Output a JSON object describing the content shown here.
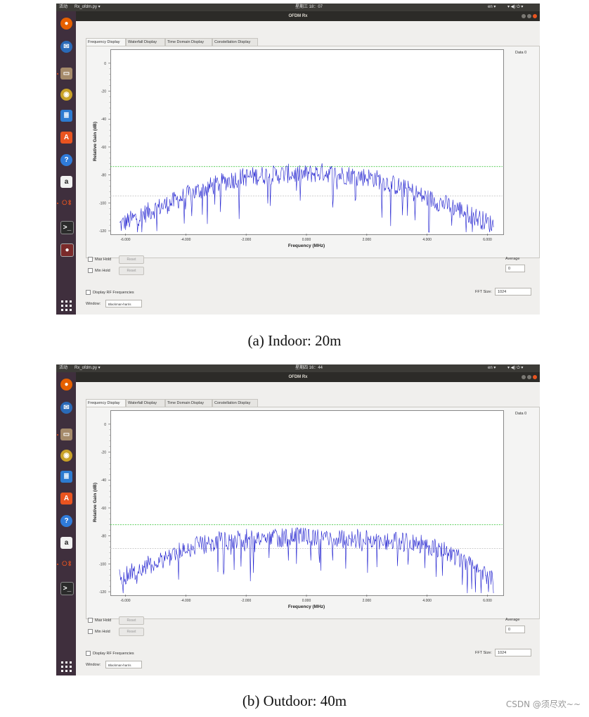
{
  "panels": [
    {
      "caption": "(a) Indoor: 20m",
      "topbar": {
        "activities": "活动",
        "app_menu": "Rx_ofdm.py ▾",
        "clock": "星期三 18：07",
        "lang": "en ▾",
        "right_icons": "▾ ◀) ⏻ ▾"
      },
      "window_title": "OFDM Rx",
      "tabs": [
        "Frequency Display",
        "Waterfall Display",
        "Time Domain Display",
        "Constellation Display"
      ],
      "legend": "Data 0",
      "y_axis_label": "Relative Gain (dB)",
      "x_axis_label": "Frequency (MHz)",
      "controls": {
        "max_hold": "Max Hold",
        "min_hold": "Min Hold",
        "reset": "Reset",
        "average_label": "Average",
        "average_value": "0",
        "display_rf": "Display RF Frequencies",
        "fft_label": "FFT Size:",
        "fft_value": "1024",
        "window_label": "Window:",
        "window_value": "Blackman-harris"
      },
      "chart_data": {
        "type": "line",
        "x_ticks": [
          "-6.000",
          "-4.000",
          "-2.000",
          "0.000",
          "2.000",
          "4.000",
          "6.000"
        ],
        "y_ticks": [
          "0",
          "-20",
          "-40",
          "-60",
          "-80",
          "-100",
          "-120"
        ],
        "xlim": [
          -6.5,
          6.5
        ],
        "ylim": [
          -122,
          10
        ],
        "ylabel": "Relative Gain (dB)",
        "xlabel": "Frequency (MHz)",
        "series": [
          {
            "name": "Data 0",
            "color": "#1f1fcf",
            "x": [
              -6.2,
              -5.6,
              -5.0,
              -4.6,
              -4.2,
              -3.8,
              -3.4,
              -3.0,
              -2.6,
              -2.2,
              -1.8,
              -1.4,
              -1.0,
              -0.6,
              -0.2,
              0.2,
              0.6,
              1.0,
              1.4,
              1.8,
              2.2,
              2.6,
              3.0,
              3.4,
              3.8,
              4.2,
              4.6,
              5.0,
              5.4,
              5.8,
              6.2
            ],
            "y": [
              -116,
              -110,
              -104,
              -101,
              -97,
              -93,
              -90,
              -87,
              -84,
              -82,
              -81,
              -80,
              -80,
              -79,
              -80,
              -79,
              -78,
              -80,
              -80,
              -81,
              -82,
              -85,
              -88,
              -91,
              -95,
              -98,
              -101,
              -104,
              -108,
              -112,
              -116
            ]
          }
        ],
        "reference_lines": {
          "upper": -74,
          "lower": -95,
          "colors": [
            "#2bbf2b",
            "#bfbfbf"
          ]
        },
        "grid": false
      }
    },
    {
      "caption": "(b) Outdoor: 40m",
      "topbar": {
        "activities": "活动",
        "app_menu": "Rx_ofdm.py ▾",
        "clock": "星期四 16：44",
        "lang": "en ▾",
        "right_icons": "▾ ◀) ⏻ ▾"
      },
      "window_title": "OFDM Rx",
      "tabs": [
        "Frequency Display",
        "Waterfall Display",
        "Time Domain Display",
        "Constellation Display"
      ],
      "legend": "Data 0",
      "y_axis_label": "Relative Gain (dB)",
      "x_axis_label": "Frequency (MHz)",
      "controls": {
        "max_hold": "Max Hold",
        "min_hold": "Min Hold",
        "reset": "Reset",
        "average_label": "Average",
        "average_value": "0",
        "display_rf": "Display RF Frequencies",
        "fft_label": "FFT Size:",
        "fft_value": "1024",
        "window_label": "Window:",
        "window_value": "Blackman-harris"
      },
      "chart_data": {
        "type": "line",
        "x_ticks": [
          "-6.000",
          "-4.000",
          "-2.000",
          "0.000",
          "2.000",
          "4.000",
          "6.000"
        ],
        "y_ticks": [
          "0",
          "-20",
          "-40",
          "-60",
          "-80",
          "-100",
          "-120"
        ],
        "xlim": [
          -6.5,
          6.5
        ],
        "ylim": [
          -122,
          10
        ],
        "ylabel": "Relative Gain (dB)",
        "xlabel": "Frequency (MHz)",
        "series": [
          {
            "name": "Data 0",
            "color": "#1f1fcf",
            "x": [
              -6.2,
              -5.6,
              -5.0,
              -4.6,
              -4.2,
              -3.8,
              -3.4,
              -3.0,
              -2.6,
              -2.2,
              -1.8,
              -1.4,
              -1.0,
              -0.6,
              -0.2,
              0.2,
              0.6,
              1.0,
              1.4,
              1.8,
              2.2,
              2.6,
              3.0,
              3.4,
              3.8,
              4.2,
              4.6,
              5.0,
              5.4,
              5.8,
              6.2
            ],
            "y": [
              -110,
              -104,
              -99,
              -95,
              -91,
              -88,
              -86,
              -84,
              -83,
              -82,
              -82,
              -82,
              -81,
              -81,
              -81,
              -81,
              -81,
              -82,
              -82,
              -82,
              -83,
              -83,
              -84,
              -85,
              -86,
              -88,
              -91,
              -95,
              -99,
              -105,
              -111
            ]
          }
        ],
        "reference_lines": {
          "upper": -72,
          "lower": -89,
          "colors": [
            "#2bbf2b",
            "#bfbfbf"
          ]
        },
        "grid": false
      }
    }
  ],
  "watermark": "CSDN @须尽欢~~"
}
